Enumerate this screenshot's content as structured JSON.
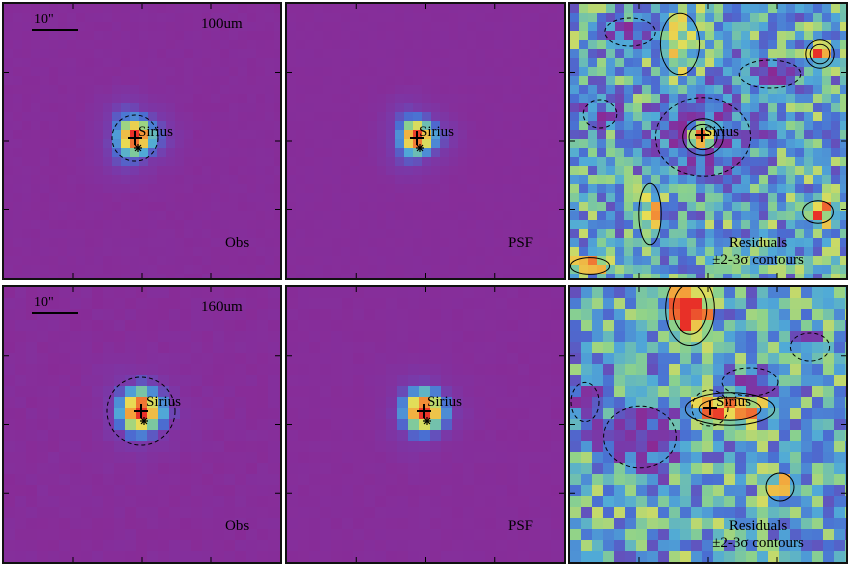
{
  "rows": [
    {
      "band": "100um",
      "scale_label": "10\"",
      "obs_label": "Obs",
      "psf_label": "PSF",
      "source_label": "Sirius",
      "residual_title": "Residuals",
      "residual_sub": "±2-3σ contours"
    },
    {
      "band": "160um",
      "scale_label": "10\"",
      "obs_label": "Obs",
      "psf_label": "PSF",
      "source_label": "Sirius",
      "residual_title": "Residuals",
      "residual_sub": "±2-3σ contours"
    }
  ],
  "colors": {
    "background_purple": "#8a2a95",
    "peak_red": "#e8322a",
    "core_orange": "#f4a13a",
    "core_yellow": "#e8df55",
    "wing_blue": "#4a7fd0",
    "residual_green": "#8fd18a",
    "contour": "#000000"
  }
}
